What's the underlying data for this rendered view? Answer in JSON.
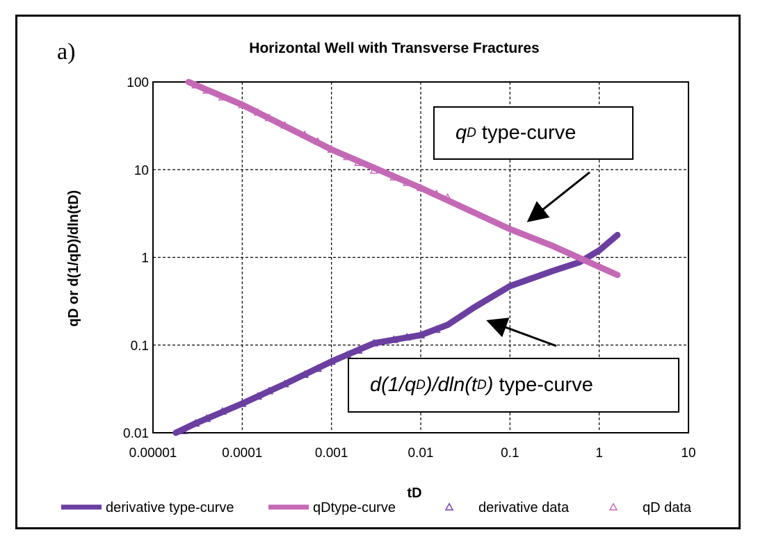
{
  "figure_label": "a)",
  "callouts": {
    "qd": {
      "base": "q",
      "sub": "D",
      "rest": " type-curve"
    },
    "derivative": {
      "p1": "d(1/q",
      "sub1": "D",
      "p2": ")/dln(t",
      "sub2": "D",
      "p3": ")",
      "rest": " type-curve"
    }
  },
  "chart_data": {
    "type": "line",
    "title": "Horizontal Well with Transverse Fractures",
    "xlabel": "tD",
    "ylabel": "qD or d(1/qD)/dln(tD)",
    "xscale": "log",
    "yscale": "log",
    "xlim": [
      1e-05,
      10
    ],
    "ylim": [
      0.01,
      100
    ],
    "x_tick_labels": [
      "0.00001",
      "0.0001",
      "0.001",
      "0.01",
      "0.1",
      "1",
      "10"
    ],
    "y_tick_labels": [
      "0.01",
      "0.1",
      "1",
      "10",
      "100"
    ],
    "grid": true,
    "legend_position": "bottom",
    "colors": {
      "derivative": "#6a3fa0",
      "qd": "#c469b5"
    },
    "series": [
      {
        "name": "derivative type-curve",
        "kind": "line",
        "color": "#6a3fa0",
        "x": [
          1.8e-05,
          3e-05,
          0.0001,
          0.0003,
          0.001,
          0.003,
          0.01,
          0.02,
          0.04,
          0.1,
          0.3,
          0.6,
          1.0,
          1.6
        ],
        "y": [
          0.01,
          0.0128,
          0.0215,
          0.036,
          0.065,
          0.105,
          0.13,
          0.17,
          0.27,
          0.47,
          0.7,
          0.88,
          1.2,
          1.8
        ]
      },
      {
        "name": "qDtype-curve",
        "kind": "line",
        "color": "#c469b5",
        "x": [
          2.5e-05,
          0.0001,
          0.001,
          0.01,
          0.03,
          0.1,
          0.3,
          1.0,
          1.6
        ],
        "y": [
          100,
          55,
          17,
          6.2,
          3.7,
          2.1,
          1.35,
          0.78,
          0.63
        ]
      },
      {
        "name": "derivative data",
        "kind": "marker",
        "color": "#6a3fa0",
        "x": [
          2.2e-05,
          3e-05,
          4e-05,
          6e-05,
          0.0001,
          0.00015,
          0.0002,
          0.0003,
          0.0005,
          0.0007,
          0.001,
          0.0015,
          0.002,
          0.003,
          0.005,
          0.007,
          0.01,
          0.015
        ],
        "y": [
          0.0105,
          0.0128,
          0.0145,
          0.0175,
          0.0215,
          0.026,
          0.03,
          0.036,
          0.046,
          0.054,
          0.065,
          0.077,
          0.087,
          0.105,
          0.115,
          0.123,
          0.13,
          0.15
        ]
      },
      {
        "name": "qD data",
        "kind": "marker",
        "color": "#c469b5",
        "x": [
          3e-05,
          4e-05,
          6e-05,
          0.0001,
          0.00015,
          0.0002,
          0.0003,
          0.0005,
          0.0007,
          0.001,
          0.0015,
          0.002,
          0.003,
          0.005,
          0.007,
          0.01,
          0.015,
          0.02
        ],
        "y": [
          92,
          80,
          67,
          55,
          45,
          39,
          32,
          25,
          21,
          17,
          14,
          12,
          9.8,
          8.2,
          7.1,
          6.2,
          5.3,
          4.8
        ]
      }
    ]
  }
}
